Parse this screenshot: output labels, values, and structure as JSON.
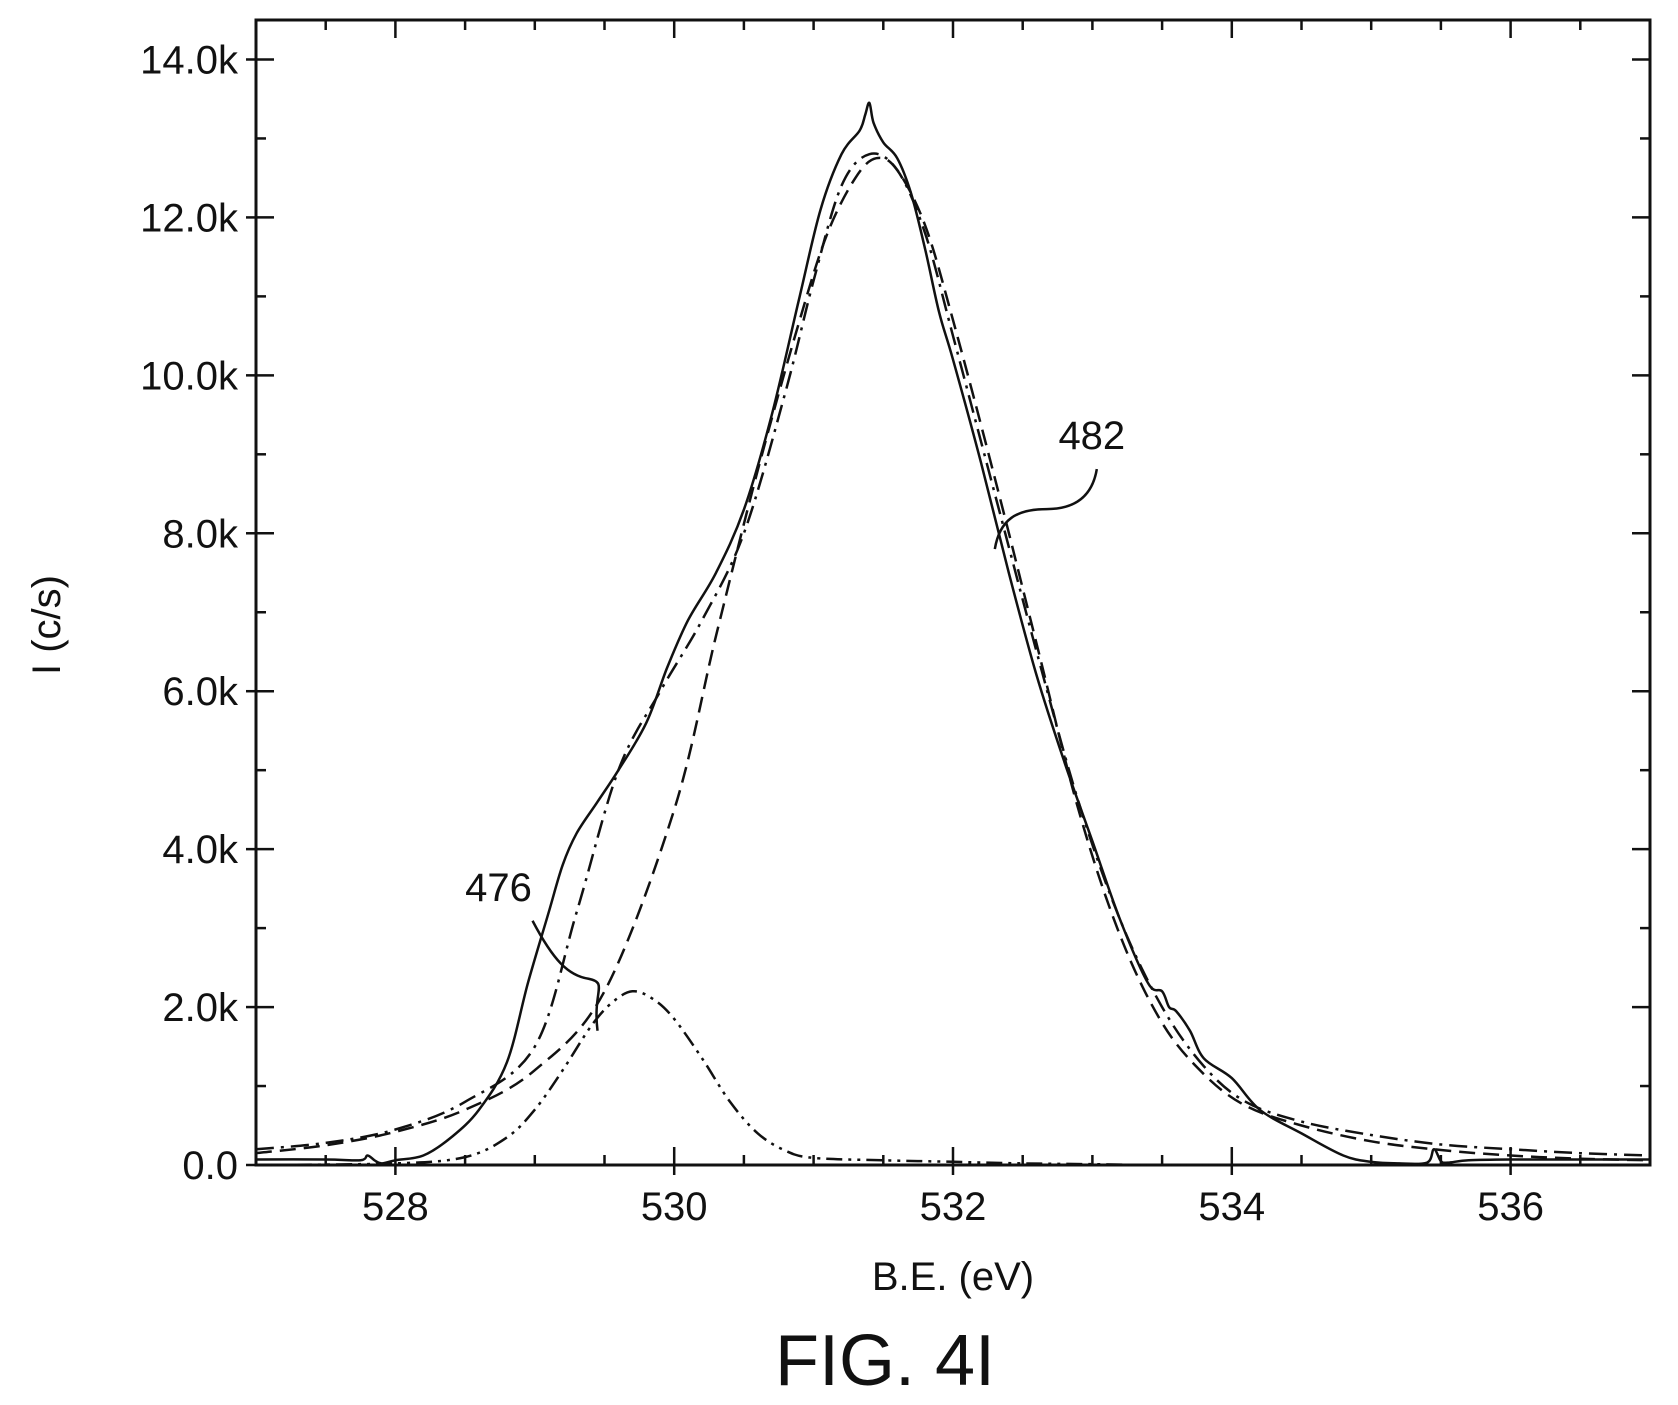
{
  "figure": {
    "caption": "FIG. 4I"
  },
  "chart_data": {
    "type": "line",
    "title": "",
    "xlabel": "B.E. (eV)",
    "ylabel": "I (c/s)",
    "xlim": [
      527,
      537
    ],
    "ylim": [
      0,
      14500
    ],
    "x_ticks": [
      528,
      530,
      532,
      534,
      536
    ],
    "x_tick_labels": [
      "528",
      "530",
      "532",
      "534",
      "536"
    ],
    "y_ticks": [
      0,
      2000,
      4000,
      6000,
      8000,
      10000,
      12000,
      14000
    ],
    "y_tick_labels": [
      "0.0",
      "2.0k",
      "4.0k",
      "6.0k",
      "8.0k",
      "10.0k",
      "12.0k",
      "14.0k"
    ],
    "grid": false,
    "legend": "none",
    "series": [
      {
        "style": "solid",
        "x": [
          527.0,
          527.5,
          527.75,
          527.8,
          527.85,
          527.9,
          528.0,
          528.2,
          528.4,
          528.6,
          528.8,
          528.95,
          529.1,
          529.2,
          529.3,
          529.45,
          529.6,
          529.8,
          529.95,
          530.1,
          530.3,
          530.5,
          530.7,
          530.9,
          531.05,
          531.2,
          531.33,
          531.37,
          531.4,
          531.43,
          531.5,
          531.6,
          531.7,
          531.8,
          531.9,
          532.0,
          532.2,
          532.4,
          532.6,
          532.8,
          533.0,
          533.2,
          533.4,
          533.5,
          533.55,
          533.6,
          533.7,
          533.8,
          534.0,
          534.2,
          534.5,
          534.8,
          535.0,
          535.2,
          535.4,
          535.45,
          535.5,
          535.55,
          535.7,
          536.0,
          536.5,
          537.0
        ],
        "y": [
          70,
          70,
          60,
          120,
          60,
          20,
          60,
          120,
          350,
          700,
          1300,
          2300,
          3200,
          3800,
          4200,
          4600,
          5000,
          5600,
          6300,
          6900,
          7500,
          8300,
          9500,
          11000,
          12100,
          12800,
          13100,
          13300,
          13450,
          13200,
          12950,
          12750,
          12300,
          11600,
          10800,
          10200,
          8900,
          7500,
          6200,
          5100,
          4100,
          3100,
          2300,
          2200,
          2000,
          1950,
          1700,
          1350,
          1100,
          700,
          400,
          120,
          40,
          20,
          30,
          200,
          50,
          30,
          60,
          70,
          70,
          70
        ]
      },
      {
        "style": "dash-dot",
        "x": [
          527.0,
          527.5,
          528.0,
          528.5,
          529.0,
          529.3,
          529.6,
          529.9,
          530.2,
          530.5,
          530.8,
          531.0,
          531.2,
          531.4,
          531.6,
          531.8,
          532.0,
          532.3,
          532.6,
          532.9,
          533.2,
          533.5,
          533.8,
          534.1,
          534.5,
          535.0,
          535.5,
          536.0,
          536.5,
          537.0
        ],
        "y": [
          200,
          280,
          450,
          800,
          1500,
          3200,
          5000,
          6000,
          6900,
          8000,
          9800,
          11200,
          12400,
          12800,
          12600,
          11800,
          10500,
          8500,
          6500,
          4600,
          3100,
          2000,
          1250,
          800,
          550,
          380,
          260,
          200,
          150,
          120
        ]
      },
      {
        "style": "dashed",
        "x": [
          527.0,
          527.5,
          528.0,
          528.5,
          529.0,
          529.5,
          530.0,
          530.3,
          530.6,
          530.9,
          531.1,
          531.3,
          531.45,
          531.6,
          531.8,
          532.0,
          532.3,
          532.6,
          532.9,
          533.2,
          533.5,
          533.8,
          534.1,
          534.5,
          535.0,
          535.5,
          536.0,
          536.5,
          537.0
        ],
        "y": [
          150,
          250,
          420,
          700,
          1200,
          2200,
          4500,
          6700,
          8800,
          10700,
          11800,
          12500,
          12750,
          12600,
          11900,
          10700,
          8700,
          6600,
          4500,
          2900,
          1800,
          1150,
          750,
          500,
          300,
          190,
          120,
          80,
          60
        ]
      },
      {
        "style": "dash-dot-dot",
        "x": [
          527.0,
          528.0,
          528.5,
          528.8,
          529.0,
          529.2,
          529.4,
          529.55,
          529.7,
          529.85,
          530.0,
          530.2,
          530.4,
          530.6,
          530.8,
          531.0,
          531.5,
          532.0,
          532.5,
          533.0,
          533.5,
          534.0,
          537.0
        ],
        "y": [
          0,
          20,
          100,
          350,
          700,
          1200,
          1750,
          2050,
          2200,
          2100,
          1850,
          1350,
          800,
          400,
          180,
          90,
          60,
          40,
          20,
          10,
          0,
          0,
          0
        ]
      }
    ],
    "annotations": [
      {
        "text": "476",
        "x": 529.45,
        "y": 1700
      },
      {
        "text": "482",
        "x": 532.3,
        "y": 7800
      }
    ]
  }
}
